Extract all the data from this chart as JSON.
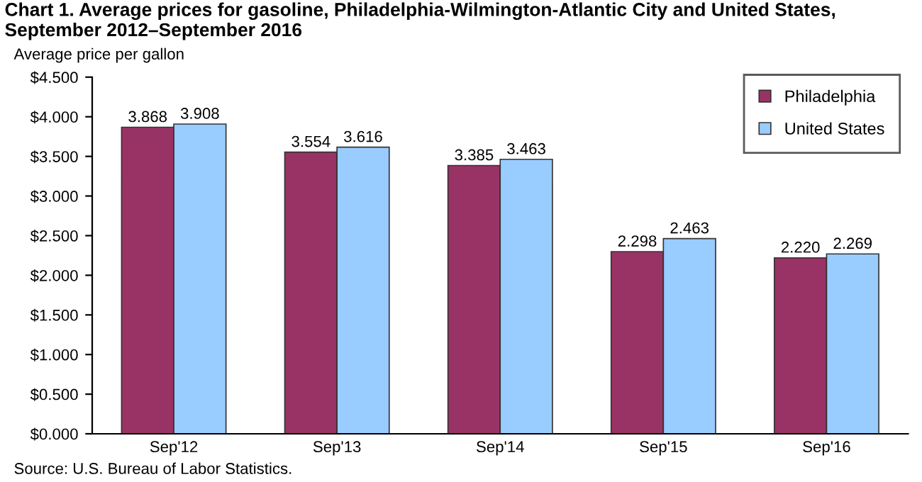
{
  "chart_data": {
    "type": "bar",
    "title": "Chart 1. Average prices for gasoline, Philadelphia-Wilmington-Atlantic City and United States, September 2012–September 2016",
    "ylabel": "Average price per gallon",
    "categories": [
      "Sep'12",
      "Sep'13",
      "Sep'14",
      "Sep'15",
      "Sep'16"
    ],
    "series": [
      {
        "name": "Philadelphia",
        "color": "#993366",
        "values": [
          3.868,
          3.554,
          3.385,
          2.298,
          2.22
        ],
        "value_labels": [
          "3.868",
          "3.554",
          "3.385",
          "2.298",
          "2.220"
        ]
      },
      {
        "name": "United States",
        "color": "#99ccff",
        "values": [
          3.908,
          3.616,
          3.463,
          2.463,
          2.269
        ],
        "value_labels": [
          "3.908",
          "3.616",
          "3.463",
          "2.463",
          "2.269"
        ]
      }
    ],
    "ylim": [
      0,
      4.5
    ],
    "yticks": [
      {
        "value": 0,
        "label": "$0.000"
      },
      {
        "value": 0.5,
        "label": "$0.500"
      },
      {
        "value": 1,
        "label": "$1.000"
      },
      {
        "value": 1.5,
        "label": "$1.500"
      },
      {
        "value": 2,
        "label": "$2.000"
      },
      {
        "value": 2.5,
        "label": "$2.500"
      },
      {
        "value": 3,
        "label": "$3.000"
      },
      {
        "value": 3.5,
        "label": "$3.500"
      },
      {
        "value": 4,
        "label": "$4.000"
      },
      {
        "value": 4.5,
        "label": "$4.500"
      }
    ],
    "legend": "top right",
    "annotations": [
      "Source: U.S. Bureau of Labor Statistics."
    ]
  }
}
